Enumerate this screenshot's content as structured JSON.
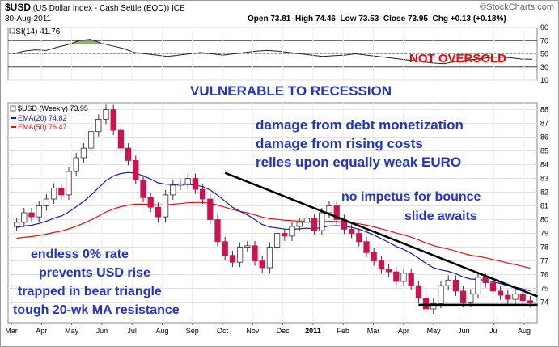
{
  "header": {
    "symbol": "$USD",
    "name": "(US Dollar Index - Cash Settle (EOD))",
    "exchange": "ICE",
    "date": "30-Aug-2011",
    "open_label": "Open",
    "open": "73.81",
    "high_label": "High",
    "high": "74.46",
    "low_label": "Low",
    "low": "73.53",
    "close_label": "Close",
    "close": "73.95",
    "chg_label": "Chg",
    "chg": "+0.13 (+0.18%)",
    "logo": "©StockCharts.com"
  },
  "rsi": {
    "label": "RSI(14) 41.76",
    "value": 41.76,
    "ticks": [
      "90",
      "70",
      "50",
      "30",
      "10"
    ]
  },
  "legend": {
    "price": "$USD (Weekly) 73.95",
    "ema20": "EMA(20) 74.82",
    "ema50": "EMA(50) 76.47"
  },
  "annotations": {
    "not_oversold": "NOT OVERSOLD",
    "vulnerable": "VULNERABLE TO RECESSION",
    "damage1": "damage from debt monetization",
    "damage2": "damage from rising costs",
    "relies": "relies upon equally weak EURO",
    "no_impetus": "no impetus for bounce",
    "slide": "slide awaits",
    "endless": "endless 0% rate",
    "prevents": "prevents USD rise",
    "trapped": "trapped in bear triangle",
    "tough": "tough 20-wk MA resistance"
  },
  "colors": {
    "up": "#2e7d32",
    "down": "#d01050",
    "ema20": "#1a1aa8",
    "ema50": "#dd1010",
    "annotation": "#2233cc",
    "alert": "#ff0000"
  },
  "chart_data": [
    {
      "type": "line",
      "title": "RSI(14) 41.76",
      "ylim": [
        10,
        90
      ],
      "yticks": [
        90,
        70,
        50,
        30,
        10
      ],
      "reference_lines": [
        70,
        50,
        30
      ],
      "series": [
        {
          "name": "RSI(14)",
          "values": [
            50,
            54,
            56,
            55,
            60,
            64,
            70,
            72,
            66,
            62,
            58,
            52,
            50,
            48,
            46,
            48,
            50,
            52,
            50,
            48,
            50,
            52,
            54,
            55,
            54,
            52,
            50,
            48,
            46,
            47,
            48,
            50,
            48,
            46,
            44,
            42,
            40,
            38,
            36,
            35,
            38,
            40,
            42,
            44,
            45,
            44,
            42,
            41.76
          ]
        }
      ]
    },
    {
      "type": "candlestick",
      "title": "$USD (Weekly) 73.95",
      "ylim": [
        72.5,
        88.5
      ],
      "yticks": [
        88,
        87,
        86,
        85,
        84,
        83,
        82,
        81,
        80,
        79,
        78,
        77,
        76,
        75,
        74
      ],
      "x_labels": [
        "Mar",
        "Apr",
        "May",
        "Jun",
        "Jul",
        "Aug",
        "Sep",
        "Oct",
        "Nov",
        "Dec",
        "2011",
        "Feb",
        "Mar",
        "Apr",
        "May",
        "Jun",
        "Jul",
        "Aug"
      ],
      "close": [
        79.8,
        80.5,
        80.2,
        81.0,
        81.5,
        82.3,
        81.8,
        83.5,
        84.5,
        85.2,
        86.4,
        87.3,
        88.0,
        86.5,
        85.2,
        84.3,
        82.9,
        81.6,
        80.9,
        80.2,
        81.8,
        82.5,
        82.6,
        83.0,
        82.2,
        81.5,
        80.0,
        78.4,
        77.4,
        76.9,
        78.0,
        78.1,
        77.0,
        76.5,
        78.0,
        79.0,
        78.8,
        79.5,
        79.8,
        80.1,
        79.2,
        80.5,
        81.0,
        80.0,
        79.3,
        79.0,
        78.4,
        77.6,
        77.0,
        76.4,
        76.2,
        75.5,
        76.1,
        75.2,
        74.3,
        73.5,
        73.9,
        75.2,
        75.6,
        74.8,
        74.0,
        74.6,
        75.8,
        75.4,
        74.8,
        74.5,
        74.2,
        74.6,
        74.1,
        73.95
      ],
      "ema20_last": 74.82,
      "ema50_last": 76.47,
      "trendlines": [
        {
          "name": "falling resistance",
          "from": [
            28,
            83.4
          ],
          "to": [
            70,
            74.4
          ]
        },
        {
          "name": "horizontal support",
          "from": [
            54,
            73.8
          ],
          "to": [
            70,
            73.8
          ]
        }
      ],
      "series": [
        {
          "name": "$USD (Weekly)",
          "values_ref": "close"
        },
        {
          "name": "EMA(20)",
          "last": 74.82
        },
        {
          "name": "EMA(50)",
          "last": 76.47
        }
      ]
    }
  ]
}
